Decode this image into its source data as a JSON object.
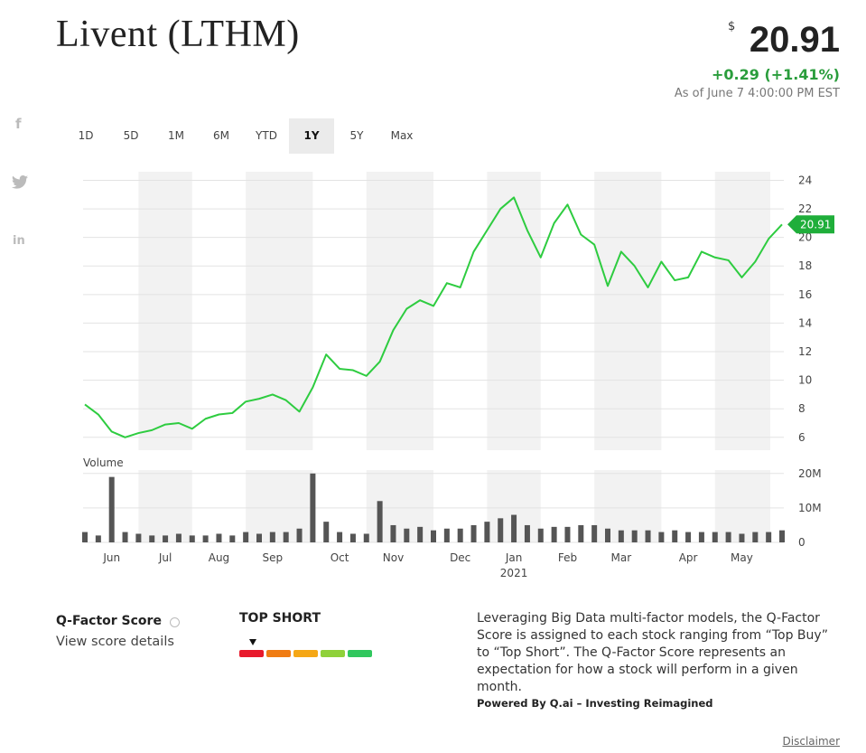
{
  "header": {
    "title": "Livent (LTHM)",
    "currency": "$",
    "price": "20.91",
    "change": "+0.29 (+1.41%)",
    "as_of": "As of June 7 4:00:00 PM EST"
  },
  "social": {
    "facebook": "f",
    "linkedin": "in"
  },
  "tabs": {
    "items": [
      "1D",
      "5D",
      "1M",
      "6M",
      "YTD",
      "1Y",
      "5Y",
      "Max"
    ],
    "active": 5
  },
  "chart_data": {
    "type": "line",
    "color": "#2ecc40",
    "categories": [
      null,
      null,
      "Jun",
      null,
      null,
      null,
      "Jul",
      null,
      null,
      null,
      "Aug",
      null,
      null,
      null,
      "Sep",
      null,
      null,
      null,
      null,
      "Oct",
      null,
      null,
      null,
      "Nov",
      null,
      null,
      null,
      null,
      "Dec",
      null,
      null,
      null,
      "Jan",
      null,
      null,
      null,
      "Feb",
      null,
      null,
      null,
      "Mar",
      null,
      null,
      null,
      null,
      "Apr",
      null,
      null,
      null,
      "May",
      null,
      null,
      null
    ],
    "year_label": "2021",
    "values": [
      8.3,
      7.6,
      6.4,
      6.0,
      6.3,
      6.5,
      6.9,
      7.0,
      6.6,
      7.3,
      7.6,
      7.7,
      8.5,
      8.7,
      9.0,
      8.6,
      7.8,
      9.5,
      11.8,
      10.8,
      10.7,
      10.3,
      11.3,
      13.5,
      15.0,
      15.6,
      15.2,
      16.8,
      16.5,
      19.0,
      20.5,
      22.0,
      22.8,
      20.5,
      18.6,
      21.0,
      22.3,
      20.2,
      19.5,
      16.6,
      19.0,
      18.0,
      16.5,
      18.3,
      17.0,
      17.2,
      19.0,
      18.6,
      18.4,
      17.2,
      18.3,
      19.9,
      20.91
    ],
    "ylim": [
      5.1,
      24.6
    ],
    "yticks": [
      6,
      8,
      10,
      12,
      14,
      16,
      18,
      20,
      22,
      24
    ],
    "grid": true,
    "volume": {
      "label": "Volume",
      "color": "#555555",
      "values": [
        3,
        2,
        19,
        3,
        2.5,
        2,
        2,
        2.5,
        2,
        2,
        2.5,
        2,
        3,
        2.5,
        3,
        3,
        4,
        20,
        6,
        3,
        2.5,
        2.5,
        12,
        5,
        4,
        4.5,
        3.5,
        4,
        4,
        5,
        6,
        7,
        8,
        5,
        4,
        4.5,
        4.5,
        5,
        5,
        4,
        3.5,
        3.5,
        3.5,
        3,
        3.5,
        3,
        3,
        3,
        3,
        2.5,
        3,
        3,
        3.5
      ],
      "ylim": [
        0,
        21
      ],
      "yticks": [
        0,
        {
          "value": 10,
          "label": "10M"
        },
        {
          "value": 20,
          "label": "20M"
        }
      ]
    }
  },
  "qfactor": {
    "title": "Q-Factor Score",
    "link": "View score details",
    "rating": "TOP SHORT",
    "description": "Leveraging Big Data multi-factor models, the Q-Factor Score is assigned to each stock ranging from “Top Buy” to “Top Short”. The Q-Factor Score represents an expectation for how a stock will perform in a given month.",
    "powered_by": "Powered By Q.ai – Investing Reimagined",
    "disclaimer": "Disclaimer"
  }
}
